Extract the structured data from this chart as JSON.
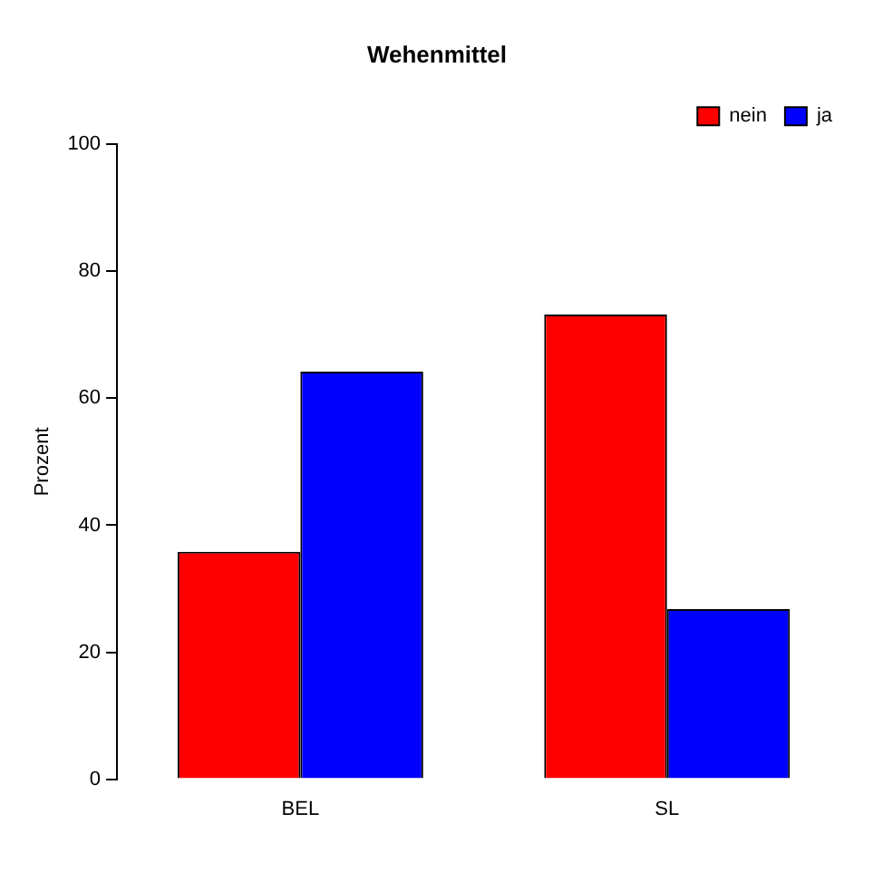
{
  "chart_data": {
    "type": "bar",
    "title": "Wehenmittel",
    "ylabel": "Prozent",
    "categories": [
      "BEL",
      "SL"
    ],
    "series": [
      {
        "name": "nein",
        "color": "#ff0000",
        "values": [
          35.8,
          73.2
        ]
      },
      {
        "name": "ja",
        "color": "#0000ff",
        "values": [
          64.2,
          26.8
        ]
      }
    ],
    "ylim": [
      0,
      100
    ],
    "yticks": [
      0,
      20,
      40,
      60,
      80,
      100
    ],
    "grid": false,
    "legend": "top right"
  }
}
